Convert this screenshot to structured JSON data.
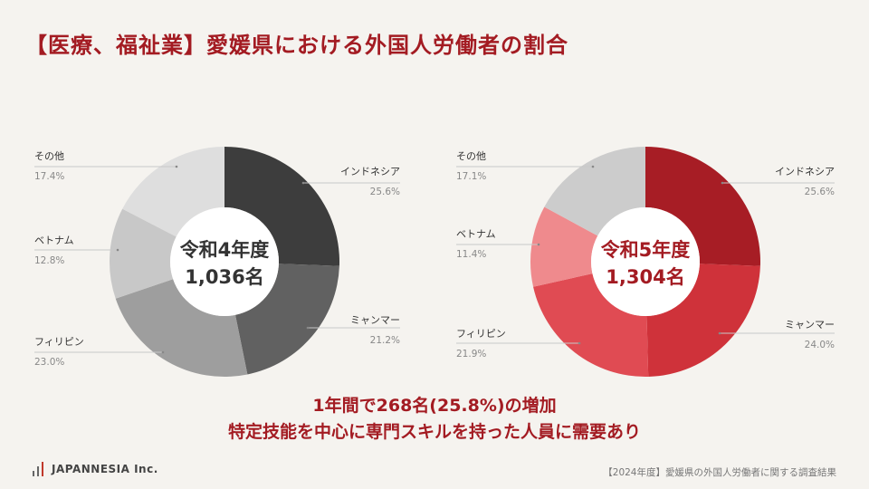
{
  "header": {
    "title": "【医療、福祉業】愛媛県における外国人労働者の割合"
  },
  "chart_data": [
    {
      "type": "pie",
      "variant": "donut",
      "center_label": [
        "令和4年度",
        "1,036名"
      ],
      "labels": [
        "インドネシア",
        "ミャンマー",
        "フィリピン",
        "ベトナム",
        "その他"
      ],
      "values": [
        25.6,
        21.2,
        23.0,
        12.8,
        17.4
      ],
      "value_labels": [
        "25.6%",
        "21.2%",
        "23.0%",
        "12.8%",
        "17.4%"
      ],
      "colors": [
        "#3d3d3d",
        "#616161",
        "#9e9e9e",
        "#c8c8c8",
        "#dedede"
      ]
    },
    {
      "type": "pie",
      "variant": "donut",
      "center_label": [
        "令和5年度",
        "1,304名"
      ],
      "labels": [
        "インドネシア",
        "ミャンマー",
        "フィリピン",
        "ベトナム",
        "その他"
      ],
      "values": [
        25.6,
        24.0,
        21.9,
        11.4,
        17.1
      ],
      "value_labels": [
        "25.6%",
        "24.0%",
        "21.9%",
        "11.4%",
        "17.1%"
      ],
      "colors": [
        "#a71d25",
        "#cf323a",
        "#e04b53",
        "#ef8a8d",
        "#cccccc"
      ]
    }
  ],
  "summary": {
    "line1": "1年間で268名(25.8%)の増加",
    "line2": "特定技能を中心に専門スキルを持った人員に需要あり"
  },
  "footer": {
    "note": "【2024年度】愛媛県の外国人労働者に関する調査結果",
    "logo_text": "JAPANNESIA Inc."
  }
}
